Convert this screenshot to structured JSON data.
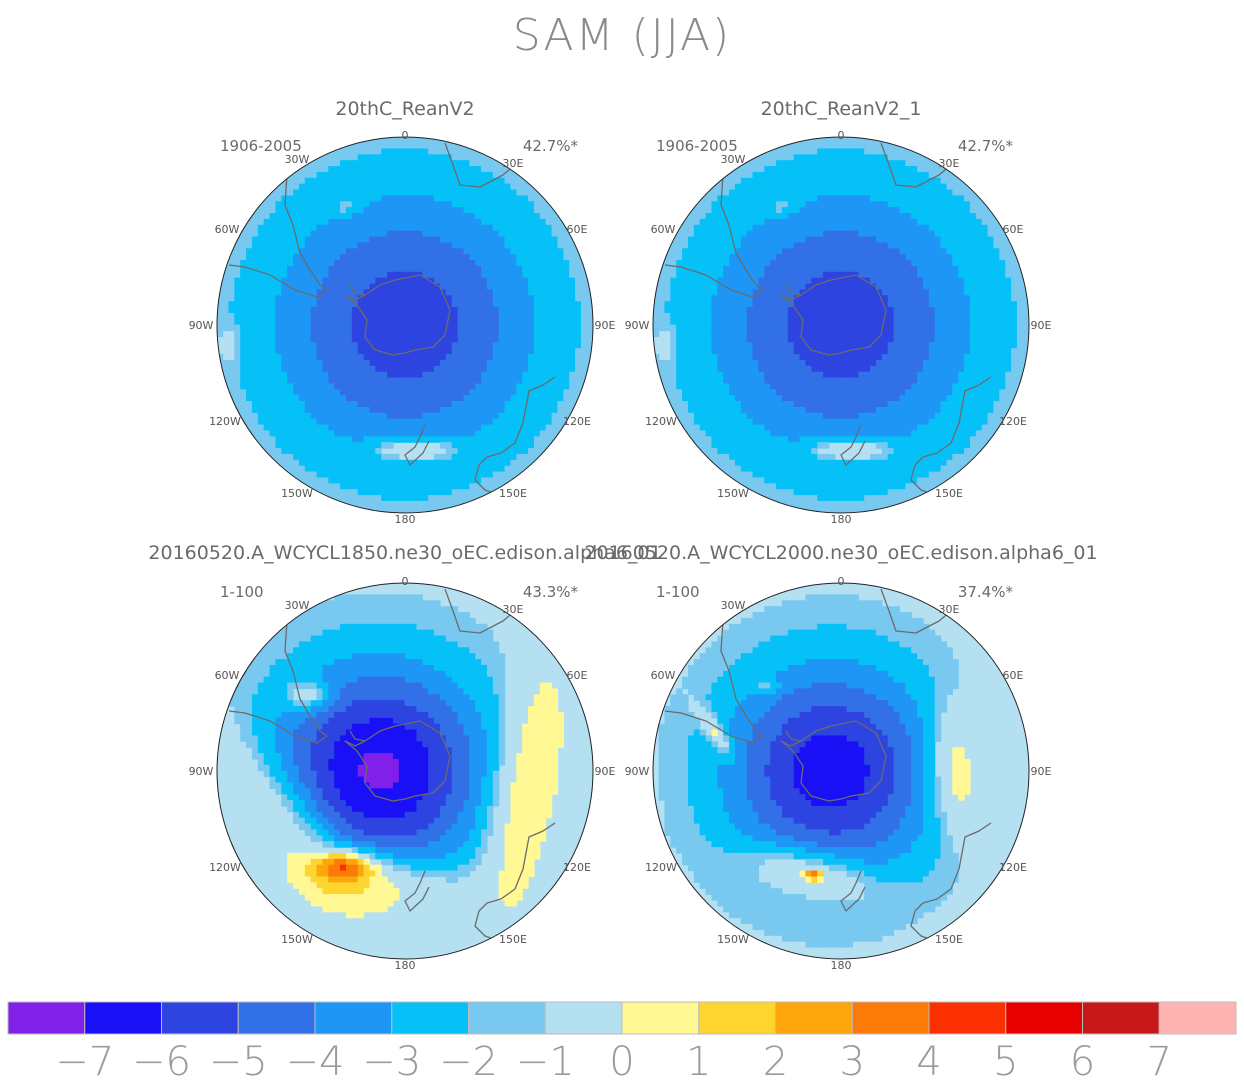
{
  "title": "SAM (JJA)",
  "chart_data": {
    "type": "heatmap",
    "projection": "south-polar-stereographic",
    "colorbar": {
      "ticks": [
        "−7",
        "−6",
        "−5",
        "−4",
        "−3",
        "−2",
        "−1",
        "0",
        "1",
        "2",
        "3",
        "4",
        "5",
        "6",
        "7"
      ],
      "colors": [
        "#8020e8",
        "#1a10f5",
        "#2e44e0",
        "#3270e8",
        "#1e96f5",
        "#06c0f8",
        "#78c8f0",
        "#b4e0f2",
        "#fff895",
        "#fed42e",
        "#fca60c",
        "#fc7a08",
        "#fa3000",
        "#e60000",
        "#c81818",
        "#ffb4b4"
      ]
    },
    "longitude_labels": [
      "0",
      "30E",
      "60E",
      "90E",
      "120E",
      "150E",
      "180",
      "150W",
      "120W",
      "90W",
      "60W",
      "30W"
    ],
    "panels": [
      {
        "title": "20thC_ReanV2",
        "period": "1906-2005",
        "variance": "42.7%*",
        "lobes": [
          {
            "dx": -58,
            "dy": -118,
            "rx": 14,
            "ry": 8,
            "level": 1,
            "i": 0.8
          },
          {
            "dx": -176,
            "dy": 20,
            "rx": 9,
            "ry": 16,
            "level": 1,
            "i": 0.8
          },
          {
            "dx": 10,
            "dy": 125,
            "rx": 40,
            "ry": 10,
            "level": 2,
            "i": 0.9
          }
        ]
      },
      {
        "title": "20thC_ReanV2_1",
        "period": "1906-2005",
        "variance": "42.7%*",
        "lobes": [
          {
            "dx": -58,
            "dy": -118,
            "rx": 14,
            "ry": 8,
            "level": 1,
            "i": 0.8
          },
          {
            "dx": -176,
            "dy": 20,
            "rx": 9,
            "ry": 16,
            "level": 1,
            "i": 0.8
          },
          {
            "dx": 10,
            "dy": 125,
            "rx": 40,
            "ry": 10,
            "level": 2,
            "i": 0.9
          }
        ]
      },
      {
        "title": "20160520.A_WCYCL1850.ne30_oEC.edison.alpha6_01",
        "period": "1-100",
        "variance": "43.3%*",
        "lobes": [
          {
            "dx": -96,
            "dy": -75,
            "rx": 22,
            "ry": 14,
            "level": 2,
            "i": 0.85
          },
          {
            "dx": -116,
            "dy": 60,
            "rx": 40,
            "ry": 110,
            "rot": -40,
            "level": 2,
            "i": 0.8
          },
          {
            "dx": -30,
            "dy": 115,
            "rx": 80,
            "ry": 32,
            "rot": 5,
            "level": 2,
            "i": 0.9
          },
          {
            "dx": -58,
            "dy": 95,
            "rx": 30,
            "ry": 14,
            "level": 3,
            "i": 0.9
          },
          {
            "dx": 122,
            "dy": 20,
            "rx": 34,
            "ry": 125,
            "rot": 10,
            "level": 2,
            "i": 0.9
          }
        ]
      },
      {
        "title": "20160520.A_WCYCL2000.ne30_oEC.edison.alpha6_01",
        "period": "1-100",
        "variance": "37.4%*",
        "lobes": [
          {
            "dx": -76,
            "dy": -85,
            "rx": 14,
            "ry": 8,
            "level": 1,
            "i": 0.85
          },
          {
            "dx": -125,
            "dy": -38,
            "rx": 8,
            "ry": 30,
            "rot": -35,
            "level": 2,
            "i": 0.85
          },
          {
            "dx": -190,
            "dy": 38,
            "rx": 6,
            "ry": 18,
            "level": 1,
            "i": 0.8
          },
          {
            "dx": -30,
            "dy": 103,
            "rx": 62,
            "ry": 24,
            "rot": 12,
            "level": 2,
            "i": 0.85
          },
          {
            "dx": -28,
            "dy": 104,
            "rx": 8,
            "ry": 5,
            "level": 3,
            "i": 0.9
          },
          {
            "dx": 115,
            "dy": 0,
            "rx": 26,
            "ry": 62,
            "rot": -5,
            "level": 2,
            "i": 0.9
          }
        ]
      }
    ]
  }
}
